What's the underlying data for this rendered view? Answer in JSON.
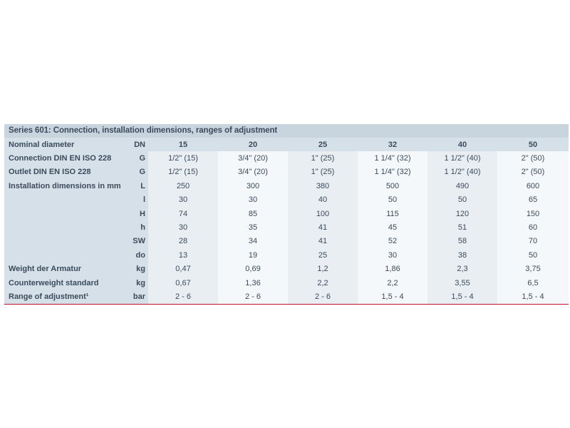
{
  "table": {
    "title": "Series 601: Connection, installation dimensions, ranges of adjustment",
    "header": {
      "label": "Nominal diameter",
      "unit": "DN",
      "values": [
        "15",
        "20",
        "25",
        "32",
        "40",
        "50"
      ]
    },
    "rows": [
      {
        "label": "Connection DIN EN ISO 228",
        "unit": "G",
        "values": [
          "1/2\" (15)",
          "3/4\" (20)",
          "1\" (25)",
          "1 1/4\" (32)",
          "1 1/2\" (40)",
          "2\" (50)"
        ]
      },
      {
        "label": "Outlet DIN EN ISO 228",
        "unit": "G",
        "values": [
          "1/2\" (15)",
          "3/4\" (20)",
          "1\" (25)",
          "1 1/4\" (32)",
          "1 1/2\" (40)",
          "2\" (50)"
        ]
      },
      {
        "label": "Installation dimensions in mm",
        "unit": "L",
        "values": [
          "250",
          "300",
          "380",
          "500",
          "490",
          "600"
        ]
      },
      {
        "label": "",
        "unit": "l",
        "values": [
          "30",
          "30",
          "40",
          "50",
          "50",
          "65"
        ]
      },
      {
        "label": "",
        "unit": "H",
        "values": [
          "74",
          "85",
          "100",
          "115",
          "120",
          "150"
        ]
      },
      {
        "label": "",
        "unit": "h",
        "values": [
          "30",
          "35",
          "41",
          "45",
          "51",
          "60"
        ]
      },
      {
        "label": "",
        "unit": "SW",
        "values": [
          "28",
          "34",
          "41",
          "52",
          "58",
          "70"
        ]
      },
      {
        "label": "",
        "unit": "do",
        "values": [
          "13",
          "19",
          "25",
          "30",
          "38",
          "50"
        ]
      },
      {
        "label": "Weight der Armatur",
        "unit": "kg",
        "values": [
          "0,47",
          "0,69",
          "1,2",
          "1,86",
          "2,3",
          "3,75"
        ]
      },
      {
        "label": "Counterweight standard",
        "unit": "kg",
        "values": [
          "0,67",
          "1,36",
          "2,2",
          "2,2",
          "3,55",
          "6,5"
        ]
      },
      {
        "label": "Range of adjustment¹",
        "unit": "bar",
        "values": [
          "2 - 6",
          "2 - 6",
          "2 - 6",
          "1,5 - 4",
          "1,5 - 4",
          "1,5 - 4"
        ]
      }
    ]
  },
  "colors": {
    "title_bg": "#c9d5de",
    "label_bg": "#d6e0e8",
    "text": "#3b4b5c",
    "rule": "#c8102e"
  }
}
